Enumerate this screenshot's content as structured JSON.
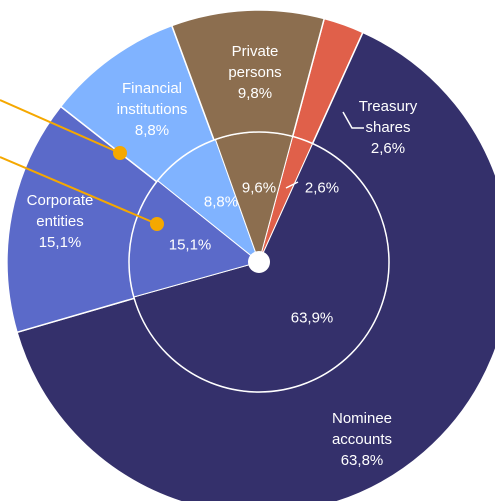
{
  "chart_data": {
    "type": "pie",
    "categories": [
      "Treasury shares",
      "Nominee accounts",
      "Corporate entities",
      "Financial institutions",
      "Private persons"
    ],
    "colors": [
      "#e0604a",
      "#34306b",
      "#5b6ac9",
      "#80b3ff",
      "#8c6e4f"
    ],
    "series": [
      {
        "values": [
          2.6,
          63.8,
          15.1,
          8.8,
          9.8
        ],
        "value_labels": [
          "2,6%",
          "63,8%",
          "15,1%",
          "8,8%",
          "9,8%"
        ]
      },
      {
        "values": [
          2.6,
          63.9,
          15.1,
          8.8,
          9.6
        ],
        "value_labels": [
          "2,6%",
          "63,9%",
          "15,1%",
          "8,8%",
          "9,6%"
        ]
      }
    ]
  }
}
